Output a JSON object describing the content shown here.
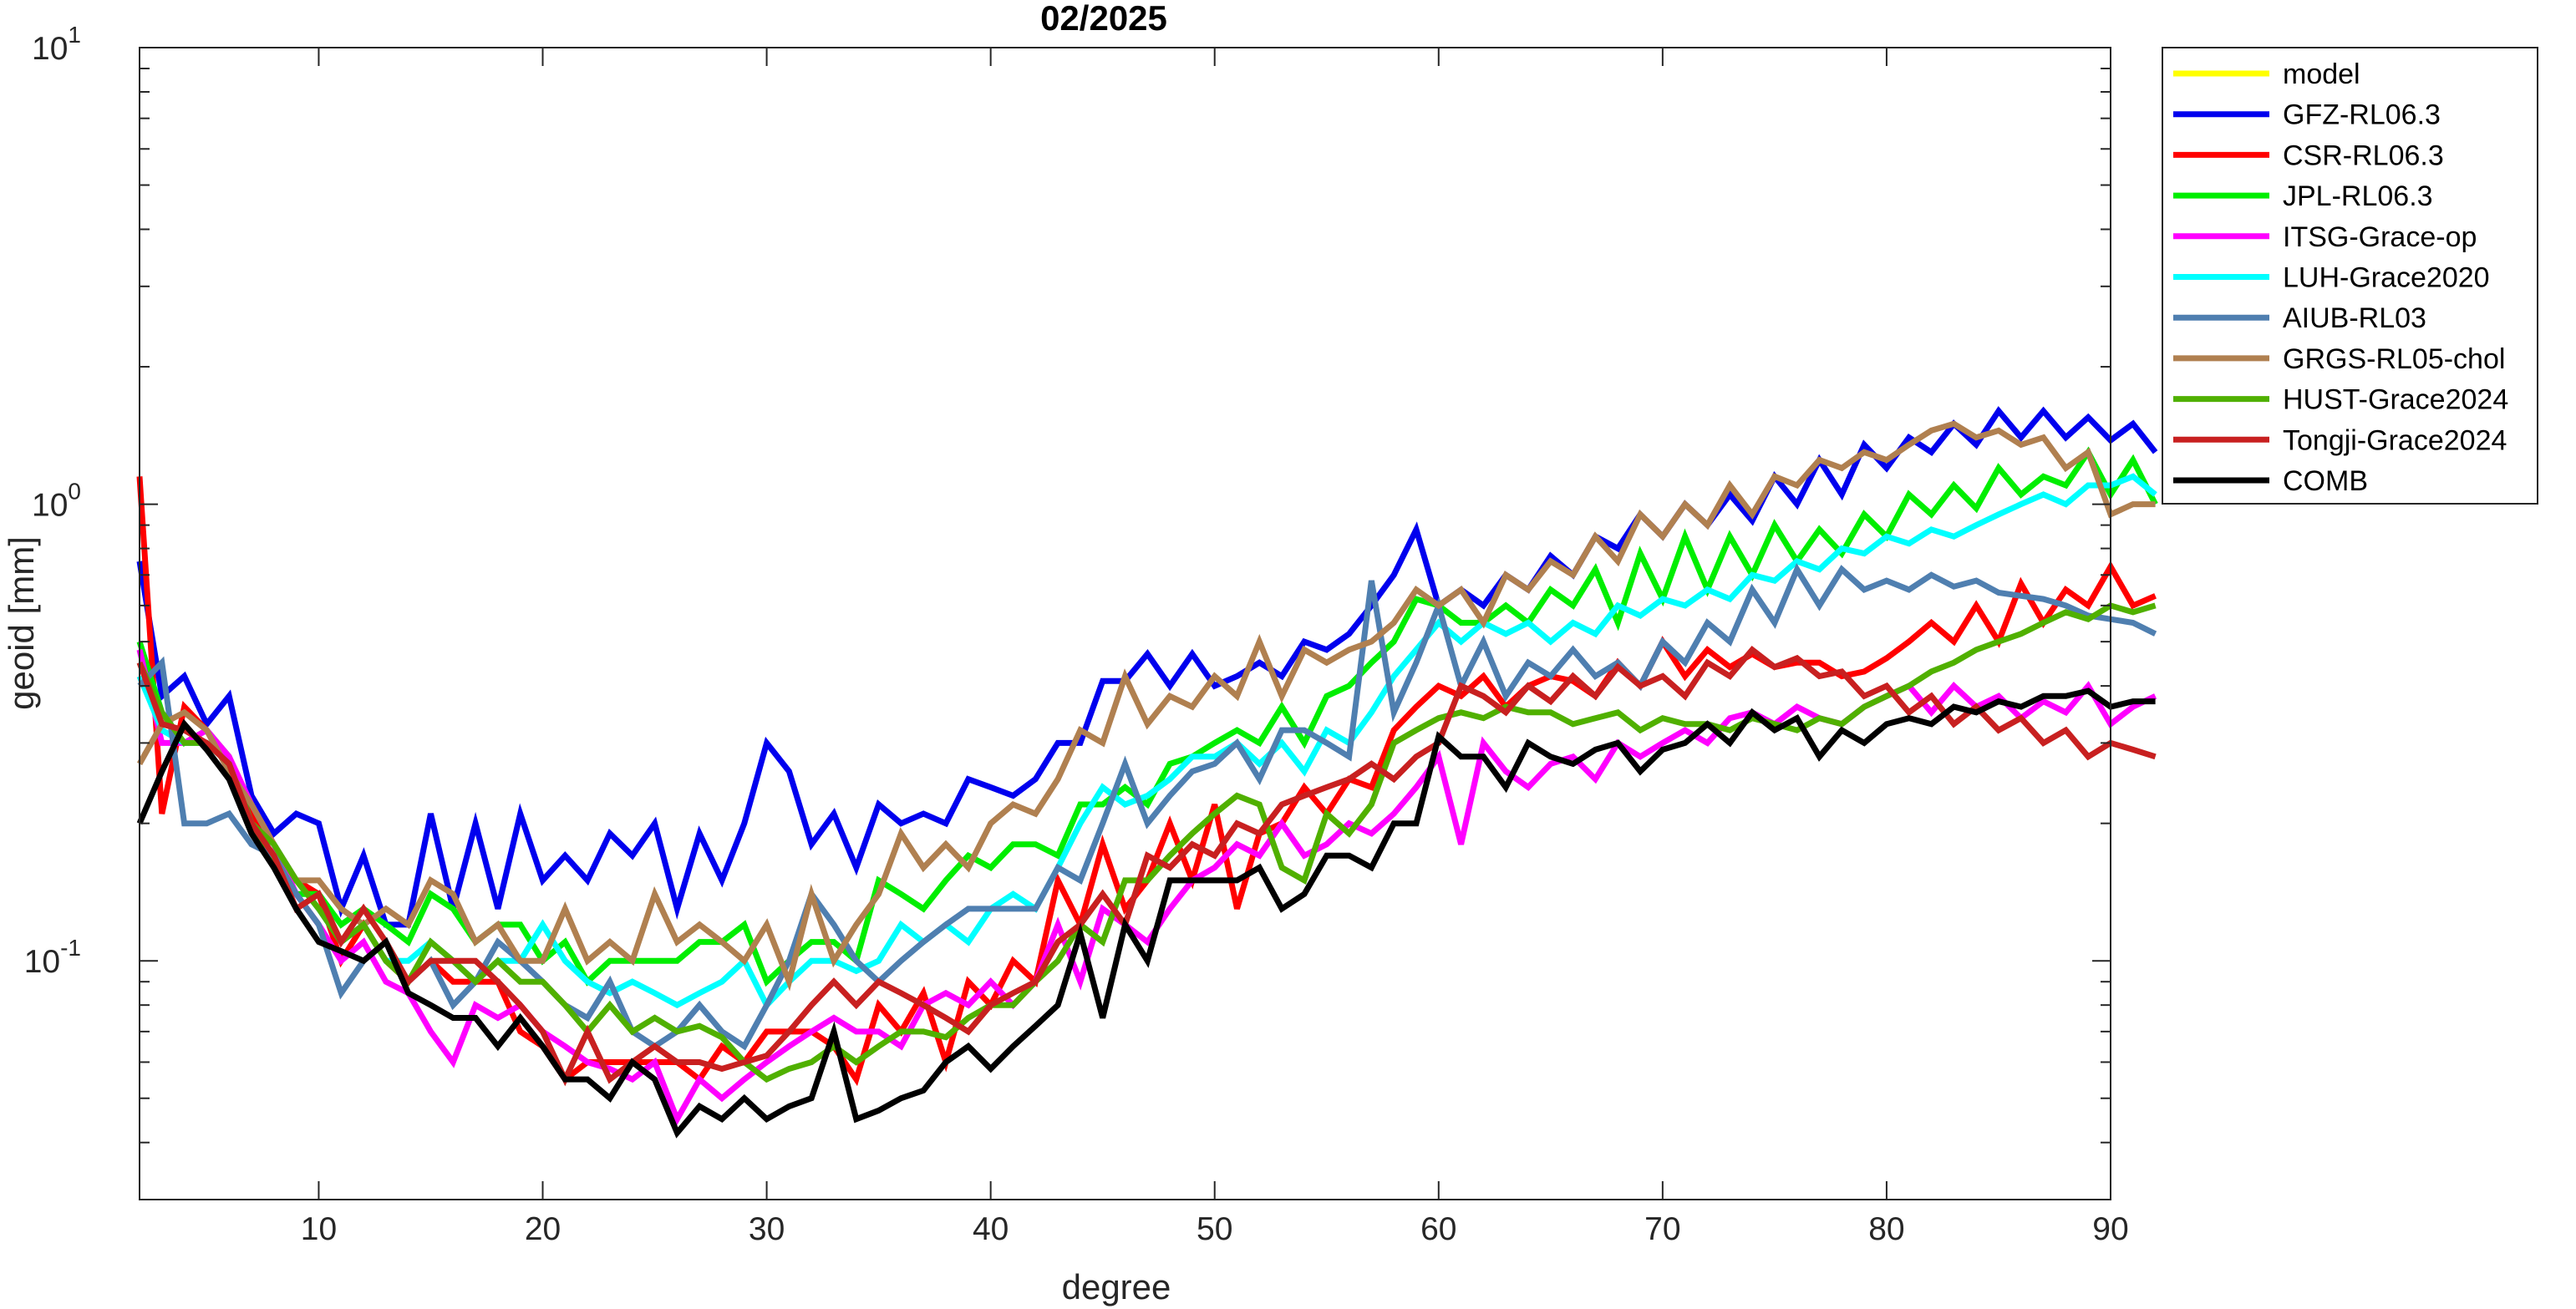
{
  "chart_data": {
    "type": "line",
    "title": "02/2025",
    "xlabel": "degree",
    "ylabel": "geoid [mm]",
    "xlim": [
      2,
      90
    ],
    "ylim": [
      0.03,
      10
    ],
    "yscale": "log",
    "x_ticks": [
      10,
      20,
      30,
      40,
      50,
      60,
      70,
      80,
      90
    ],
    "x_tick_labels": [
      "10",
      "20",
      "30",
      "40",
      "50",
      "60",
      "70",
      "80",
      "90"
    ],
    "y_ticks": [
      {
        "value": 10,
        "base": "10",
        "exp": "1"
      },
      {
        "value": 1,
        "base": "10",
        "exp": "0"
      },
      {
        "value": 0.1,
        "base": "10",
        "exp": "-1"
      }
    ],
    "grid": false,
    "legend_position": "outside-top-right",
    "x_start": 2,
    "series": [
      {
        "name": "model",
        "color": "#ffff00",
        "values": []
      },
      {
        "name": "GFZ-RL06.3",
        "color": "#0000ee",
        "values": [
          0.75,
          0.38,
          0.42,
          0.33,
          0.38,
          0.23,
          0.19,
          0.21,
          0.2,
          0.13,
          0.17,
          0.12,
          0.12,
          0.21,
          0.13,
          0.2,
          0.13,
          0.21,
          0.15,
          0.17,
          0.15,
          0.19,
          0.17,
          0.2,
          0.13,
          0.19,
          0.15,
          0.2,
          0.3,
          0.26,
          0.18,
          0.21,
          0.16,
          0.22,
          0.2,
          0.21,
          0.2,
          0.25,
          0.24,
          0.23,
          0.25,
          0.3,
          0.3,
          0.41,
          0.41,
          0.47,
          0.4,
          0.47,
          0.4,
          0.42,
          0.45,
          0.42,
          0.5,
          0.48,
          0.52,
          0.6,
          0.7,
          0.88,
          0.6,
          0.65,
          0.6,
          0.7,
          0.65,
          0.77,
          0.7,
          0.85,
          0.8,
          0.95,
          0.85,
          1.0,
          0.9,
          1.05,
          0.92,
          1.15,
          1.0,
          1.25,
          1.05,
          1.35,
          1.2,
          1.4,
          1.3,
          1.5,
          1.35,
          1.6,
          1.4,
          1.6,
          1.4,
          1.55,
          1.38,
          1.5,
          1.3
        ]
      },
      {
        "name": "CSR-RL06.3",
        "color": "#ff0000",
        "values": [
          1.15,
          0.21,
          0.36,
          0.32,
          0.26,
          0.21,
          0.18,
          0.15,
          0.14,
          0.1,
          0.12,
          0.1,
          0.09,
          0.1,
          0.09,
          0.09,
          0.09,
          0.07,
          0.065,
          0.055,
          0.06,
          0.06,
          0.06,
          0.06,
          0.06,
          0.055,
          0.065,
          0.06,
          0.07,
          0.07,
          0.07,
          0.065,
          0.055,
          0.08,
          0.07,
          0.085,
          0.06,
          0.09,
          0.08,
          0.1,
          0.09,
          0.15,
          0.12,
          0.18,
          0.13,
          0.15,
          0.2,
          0.15,
          0.22,
          0.13,
          0.19,
          0.2,
          0.24,
          0.21,
          0.25,
          0.24,
          0.32,
          0.36,
          0.4,
          0.38,
          0.42,
          0.36,
          0.4,
          0.42,
          0.41,
          0.38,
          0.45,
          0.4,
          0.5,
          0.42,
          0.48,
          0.44,
          0.47,
          0.44,
          0.45,
          0.45,
          0.42,
          0.43,
          0.46,
          0.5,
          0.55,
          0.5,
          0.6,
          0.5,
          0.67,
          0.55,
          0.65,
          0.6,
          0.73,
          0.6,
          0.63
        ]
      },
      {
        "name": "JPL-RL06.3",
        "color": "#00ee00",
        "values": [
          0.5,
          0.35,
          0.3,
          0.32,
          0.28,
          0.2,
          0.16,
          0.14,
          0.14,
          0.12,
          0.13,
          0.12,
          0.11,
          0.14,
          0.13,
          0.11,
          0.12,
          0.12,
          0.1,
          0.11,
          0.09,
          0.1,
          0.1,
          0.1,
          0.1,
          0.11,
          0.11,
          0.12,
          0.09,
          0.1,
          0.11,
          0.11,
          0.1,
          0.15,
          0.14,
          0.13,
          0.15,
          0.17,
          0.16,
          0.18,
          0.18,
          0.17,
          0.22,
          0.22,
          0.24,
          0.22,
          0.27,
          0.28,
          0.3,
          0.32,
          0.3,
          0.36,
          0.3,
          0.38,
          0.4,
          0.45,
          0.5,
          0.62,
          0.6,
          0.55,
          0.55,
          0.6,
          0.55,
          0.65,
          0.6,
          0.72,
          0.55,
          0.78,
          0.62,
          0.85,
          0.65,
          0.85,
          0.7,
          0.9,
          0.75,
          0.88,
          0.78,
          0.95,
          0.85,
          1.05,
          0.95,
          1.1,
          0.98,
          1.2,
          1.05,
          1.15,
          1.1,
          1.3,
          1.05,
          1.25,
          1.0
        ]
      },
      {
        "name": "ITSG-Grace-op",
        "color": "#ff00ff",
        "values": [
          0.48,
          0.3,
          0.3,
          0.32,
          0.28,
          0.22,
          0.18,
          0.14,
          0.12,
          0.1,
          0.11,
          0.09,
          0.085,
          0.07,
          0.06,
          0.08,
          0.075,
          0.08,
          0.07,
          0.065,
          0.06,
          0.058,
          0.055,
          0.06,
          0.045,
          0.055,
          0.05,
          0.055,
          0.06,
          0.065,
          0.07,
          0.075,
          0.07,
          0.07,
          0.065,
          0.08,
          0.085,
          0.08,
          0.09,
          0.08,
          0.09,
          0.12,
          0.09,
          0.13,
          0.12,
          0.11,
          0.13,
          0.15,
          0.16,
          0.18,
          0.17,
          0.2,
          0.17,
          0.18,
          0.2,
          0.19,
          0.21,
          0.24,
          0.28,
          0.18,
          0.3,
          0.26,
          0.24,
          0.27,
          0.28,
          0.25,
          0.3,
          0.28,
          0.3,
          0.32,
          0.3,
          0.34,
          0.35,
          0.33,
          0.36,
          0.34,
          0.33,
          0.36,
          0.38,
          0.4,
          0.35,
          0.4,
          0.36,
          0.38,
          0.34,
          0.37,
          0.35,
          0.4,
          0.33,
          0.36,
          0.38
        ]
      },
      {
        "name": "LUH-Grace2020",
        "color": "#00ffff",
        "values": [
          0.42,
          0.32,
          0.3,
          0.3,
          0.27,
          0.2,
          0.18,
          0.15,
          0.13,
          0.11,
          0.12,
          0.1,
          0.1,
          0.11,
          0.1,
          0.09,
          0.1,
          0.1,
          0.12,
          0.1,
          0.09,
          0.085,
          0.09,
          0.085,
          0.08,
          0.085,
          0.09,
          0.1,
          0.08,
          0.09,
          0.1,
          0.1,
          0.095,
          0.1,
          0.12,
          0.11,
          0.12,
          0.11,
          0.13,
          0.14,
          0.13,
          0.16,
          0.2,
          0.24,
          0.22,
          0.23,
          0.25,
          0.28,
          0.28,
          0.3,
          0.27,
          0.3,
          0.26,
          0.32,
          0.3,
          0.35,
          0.42,
          0.48,
          0.55,
          0.5,
          0.55,
          0.52,
          0.55,
          0.5,
          0.55,
          0.52,
          0.6,
          0.57,
          0.62,
          0.6,
          0.65,
          0.62,
          0.7,
          0.68,
          0.75,
          0.72,
          0.8,
          0.78,
          0.85,
          0.82,
          0.88,
          0.85,
          0.9,
          0.95,
          1.0,
          1.05,
          1.0,
          1.1,
          1.1,
          1.15,
          1.05
        ]
      },
      {
        "name": "AIUB-RL03",
        "color": "#4f7fb0",
        "values": [
          0.4,
          0.45,
          0.2,
          0.2,
          0.21,
          0.18,
          0.17,
          0.14,
          0.12,
          0.085,
          0.1,
          0.11,
          0.09,
          0.1,
          0.08,
          0.09,
          0.11,
          0.1,
          0.09,
          0.08,
          0.075,
          0.09,
          0.07,
          0.065,
          0.07,
          0.08,
          0.07,
          0.065,
          0.08,
          0.1,
          0.14,
          0.12,
          0.1,
          0.09,
          0.1,
          0.11,
          0.12,
          0.13,
          0.13,
          0.13,
          0.13,
          0.16,
          0.15,
          0.2,
          0.27,
          0.2,
          0.23,
          0.26,
          0.27,
          0.3,
          0.25,
          0.32,
          0.32,
          0.3,
          0.28,
          0.68,
          0.35,
          0.45,
          0.6,
          0.4,
          0.5,
          0.38,
          0.45,
          0.42,
          0.48,
          0.42,
          0.45,
          0.4,
          0.5,
          0.45,
          0.55,
          0.5,
          0.65,
          0.55,
          0.72,
          0.6,
          0.72,
          0.65,
          0.68,
          0.65,
          0.7,
          0.66,
          0.68,
          0.64,
          0.63,
          0.62,
          0.6,
          0.57,
          0.56,
          0.55,
          0.52
        ]
      },
      {
        "name": "GRGS-RL05-chol",
        "color": "#b08050",
        "values": [
          0.27,
          0.33,
          0.35,
          0.32,
          0.26,
          0.22,
          0.18,
          0.15,
          0.15,
          0.13,
          0.12,
          0.13,
          0.12,
          0.15,
          0.14,
          0.11,
          0.12,
          0.1,
          0.1,
          0.13,
          0.1,
          0.11,
          0.1,
          0.14,
          0.11,
          0.12,
          0.11,
          0.1,
          0.12,
          0.09,
          0.14,
          0.1,
          0.12,
          0.14,
          0.19,
          0.16,
          0.18,
          0.16,
          0.2,
          0.22,
          0.21,
          0.25,
          0.32,
          0.3,
          0.42,
          0.33,
          0.38,
          0.36,
          0.42,
          0.38,
          0.5,
          0.38,
          0.48,
          0.45,
          0.48,
          0.5,
          0.55,
          0.65,
          0.6,
          0.65,
          0.55,
          0.7,
          0.65,
          0.75,
          0.7,
          0.85,
          0.75,
          0.95,
          0.85,
          1.0,
          0.9,
          1.1,
          0.95,
          1.15,
          1.1,
          1.25,
          1.2,
          1.3,
          1.25,
          1.35,
          1.45,
          1.5,
          1.4,
          1.45,
          1.35,
          1.4,
          1.2,
          1.3,
          0.95,
          1.0,
          1.0
        ]
      },
      {
        "name": "HUST-Grace2024",
        "color": "#50b000",
        "values": [
          0.45,
          0.35,
          0.3,
          0.3,
          0.27,
          0.2,
          0.18,
          0.15,
          0.13,
          0.11,
          0.12,
          0.1,
          0.09,
          0.11,
          0.1,
          0.09,
          0.1,
          0.09,
          0.09,
          0.08,
          0.07,
          0.08,
          0.07,
          0.075,
          0.07,
          0.072,
          0.068,
          0.06,
          0.055,
          0.058,
          0.06,
          0.065,
          0.06,
          0.065,
          0.07,
          0.07,
          0.068,
          0.075,
          0.08,
          0.08,
          0.09,
          0.1,
          0.12,
          0.11,
          0.15,
          0.15,
          0.17,
          0.19,
          0.21,
          0.23,
          0.22,
          0.16,
          0.15,
          0.21,
          0.19,
          0.22,
          0.3,
          0.32,
          0.34,
          0.35,
          0.34,
          0.36,
          0.35,
          0.35,
          0.33,
          0.34,
          0.35,
          0.32,
          0.34,
          0.33,
          0.33,
          0.32,
          0.34,
          0.33,
          0.32,
          0.34,
          0.33,
          0.36,
          0.38,
          0.4,
          0.43,
          0.45,
          0.48,
          0.5,
          0.52,
          0.55,
          0.58,
          0.56,
          0.6,
          0.58,
          0.6
        ]
      },
      {
        "name": "Tongji-Grace2024",
        "color": "#c82020",
        "values": [
          0.45,
          0.33,
          0.32,
          0.3,
          0.27,
          0.2,
          0.17,
          0.13,
          0.14,
          0.11,
          0.13,
          0.11,
          0.09,
          0.1,
          0.1,
          0.1,
          0.09,
          0.08,
          0.07,
          0.055,
          0.07,
          0.055,
          0.06,
          0.065,
          0.06,
          0.06,
          0.058,
          0.06,
          0.062,
          0.07,
          0.08,
          0.09,
          0.08,
          0.09,
          0.085,
          0.08,
          0.075,
          0.07,
          0.08,
          0.085,
          0.09,
          0.11,
          0.12,
          0.14,
          0.12,
          0.17,
          0.16,
          0.18,
          0.17,
          0.2,
          0.19,
          0.22,
          0.23,
          0.24,
          0.25,
          0.27,
          0.25,
          0.28,
          0.3,
          0.4,
          0.38,
          0.35,
          0.4,
          0.37,
          0.42,
          0.38,
          0.44,
          0.4,
          0.42,
          0.38,
          0.45,
          0.42,
          0.48,
          0.44,
          0.46,
          0.42,
          0.43,
          0.38,
          0.4,
          0.35,
          0.38,
          0.33,
          0.36,
          0.32,
          0.34,
          0.3,
          0.32,
          0.28,
          0.3,
          0.29,
          0.28
        ]
      },
      {
        "name": "COMB",
        "color": "#000000",
        "values": [
          0.2,
          0.26,
          0.33,
          0.29,
          0.25,
          0.19,
          0.16,
          0.13,
          0.11,
          0.105,
          0.1,
          0.11,
          0.085,
          0.08,
          0.075,
          0.075,
          0.065,
          0.075,
          0.065,
          0.055,
          0.055,
          0.05,
          0.06,
          0.055,
          0.042,
          0.048,
          0.045,
          0.05,
          0.045,
          0.048,
          0.05,
          0.07,
          0.045,
          0.047,
          0.05,
          0.052,
          0.06,
          0.065,
          0.058,
          0.065,
          0.072,
          0.08,
          0.115,
          0.075,
          0.12,
          0.1,
          0.15,
          0.15,
          0.15,
          0.15,
          0.16,
          0.13,
          0.14,
          0.17,
          0.17,
          0.16,
          0.2,
          0.2,
          0.31,
          0.28,
          0.28,
          0.24,
          0.3,
          0.28,
          0.27,
          0.29,
          0.3,
          0.26,
          0.29,
          0.3,
          0.33,
          0.3,
          0.35,
          0.32,
          0.34,
          0.28,
          0.32,
          0.3,
          0.33,
          0.34,
          0.33,
          0.36,
          0.35,
          0.37,
          0.36,
          0.38,
          0.38,
          0.39,
          0.36,
          0.37,
          0.37
        ]
      }
    ]
  }
}
